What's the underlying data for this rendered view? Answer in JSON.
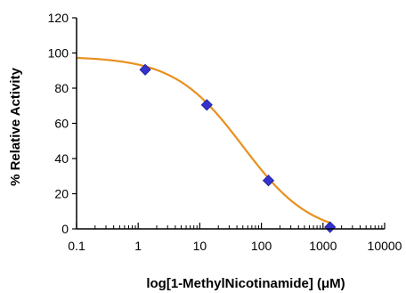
{
  "chart_data": {
    "type": "scatter",
    "title": "",
    "xlabel": "log[1-MethylNicotinamide] (μM)",
    "ylabel": "% Relative Activity",
    "x_scale": "log",
    "xlim": [
      0.1,
      10000
    ],
    "ylim": [
      0,
      120
    ],
    "x_ticks": [
      0.1,
      1,
      10,
      100,
      1000,
      10000
    ],
    "x_tick_labels": [
      "0.1",
      "1",
      "10",
      "100",
      "1000",
      "10000"
    ],
    "y_ticks": [
      0,
      20,
      40,
      60,
      80,
      100,
      120
    ],
    "y_tick_labels": [
      "0",
      "20",
      "40",
      "60",
      "80",
      "100",
      "120"
    ],
    "grid": false,
    "legend": "none",
    "series": [
      {
        "kind": "points",
        "marker": "diamond",
        "color": "#3333cc",
        "x": [
          1.3,
          13,
          130,
          1300
        ],
        "y": [
          90.5,
          70.5,
          27.5,
          1
        ]
      },
      {
        "kind": "fit-curve",
        "color": "#e8901e",
        "top": 98,
        "bottom": -4,
        "ic50": 50,
        "hill": 0.78
      }
    ]
  }
}
